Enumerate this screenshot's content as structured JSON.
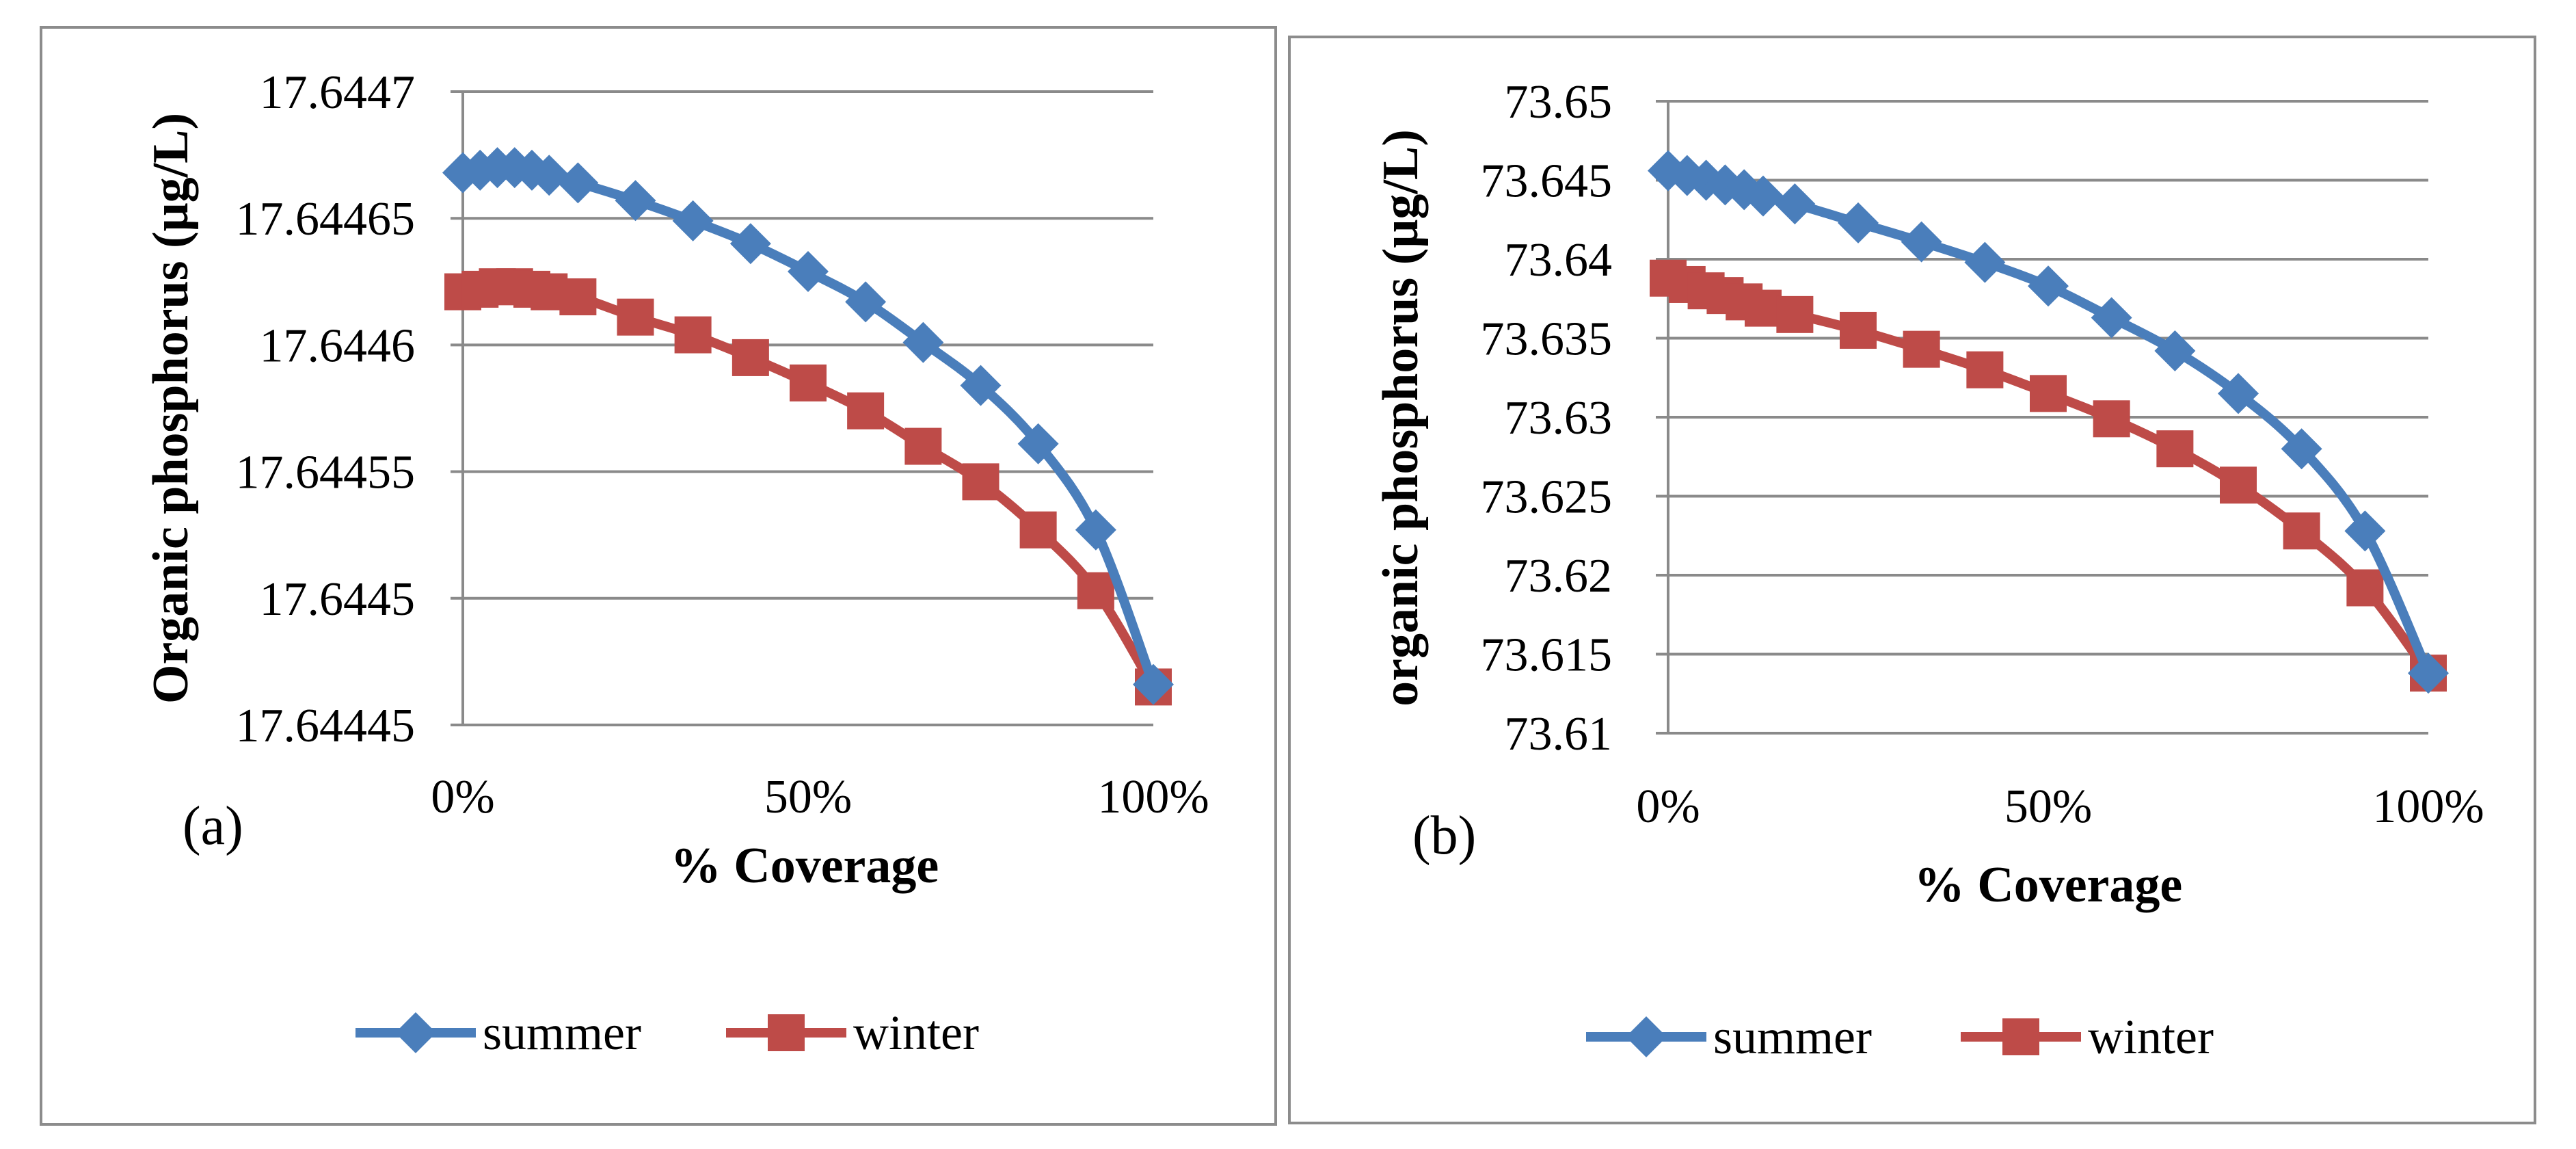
{
  "chart_data": [
    {
      "type": "line",
      "panel_label": "(a)",
      "xlabel": "% Coverage",
      "ylabel": "Organic phosphorus (μg/L)",
      "ylim": [
        17.64445,
        17.6447
      ],
      "y_ticks": [
        17.64445,
        17.6445,
        17.64455,
        17.6446,
        17.64465,
        17.6447
      ],
      "y_tick_labels": [
        "17.64445",
        "17.6445",
        "17.64455",
        "17.6446",
        "17.64465",
        "17.6447"
      ],
      "xlim": [
        0,
        100
      ],
      "x_ticks": [
        0,
        50,
        100
      ],
      "x_tick_labels": [
        "0%",
        "50%",
        "100%"
      ],
      "x": [
        0,
        2.5,
        5,
        7.5,
        10,
        12.5,
        16.67,
        25,
        33.33,
        41.67,
        50,
        58.33,
        66.67,
        75,
        83.33,
        91.67,
        100
      ],
      "series": [
        {
          "name": "summer",
          "color": "#4a7ebb",
          "marker": "diamond",
          "values": [
            17.644668,
            17.644669,
            17.64467,
            17.64467,
            17.644669,
            17.644667,
            17.644664,
            17.644657,
            17.644649,
            17.64464,
            17.644629,
            17.644617,
            17.644601,
            17.644584,
            17.644561,
            17.644527,
            17.644466
          ]
        },
        {
          "name": "winter",
          "color": "#be4b48",
          "marker": "square",
          "values": [
            17.644621,
            17.644622,
            17.644623,
            17.644623,
            17.644622,
            17.644621,
            17.644619,
            17.644611,
            17.644604,
            17.644595,
            17.644585,
            17.644574,
            17.64456,
            17.644546,
            17.644527,
            17.644503,
            17.644465
          ]
        }
      ],
      "legend": [
        "summer",
        "winter"
      ],
      "legend_position": "bottom",
      "grid": "horizontal"
    },
    {
      "type": "line",
      "panel_label": "(b)",
      "xlabel": "% Coverage",
      "ylabel": "organic phosphorus (μg/L)",
      "ylim": [
        73.61,
        73.65
      ],
      "y_ticks": [
        73.61,
        73.615,
        73.62,
        73.625,
        73.63,
        73.635,
        73.64,
        73.645,
        73.65
      ],
      "y_tick_labels": [
        "73.61",
        "73.615",
        "73.62",
        "73.625",
        "73.63",
        "73.635",
        "73.64",
        "73.645",
        "73.65"
      ],
      "xlim": [
        0,
        100
      ],
      "x_ticks": [
        0,
        50,
        100
      ],
      "x_tick_labels": [
        "0%",
        "50%",
        "100%"
      ],
      "x": [
        0,
        2.5,
        5,
        7.5,
        10,
        12.5,
        16.67,
        25,
        33.33,
        41.67,
        50,
        58.33,
        66.67,
        75,
        83.33,
        91.67,
        100
      ],
      "series": [
        {
          "name": "summer",
          "color": "#4a7ebb",
          "marker": "diamond",
          "values": [
            73.6456,
            73.6453,
            73.645,
            73.6447,
            73.6444,
            73.644,
            73.6435,
            73.6423,
            73.6411,
            73.6398,
            73.6383,
            73.6363,
            73.6342,
            73.6315,
            73.628,
            73.6228,
            73.6138
          ]
        },
        {
          "name": "winter",
          "color": "#be4b48",
          "marker": "square",
          "values": [
            73.6388,
            73.6384,
            73.638,
            73.6377,
            73.6373,
            73.6369,
            73.6365,
            73.6355,
            73.6343,
            73.633,
            73.6315,
            73.6299,
            73.628,
            73.6257,
            73.6228,
            73.6192,
            73.6138
          ]
        }
      ],
      "legend": [
        "summer",
        "winter"
      ],
      "legend_position": "bottom",
      "grid": "horizontal"
    }
  ]
}
